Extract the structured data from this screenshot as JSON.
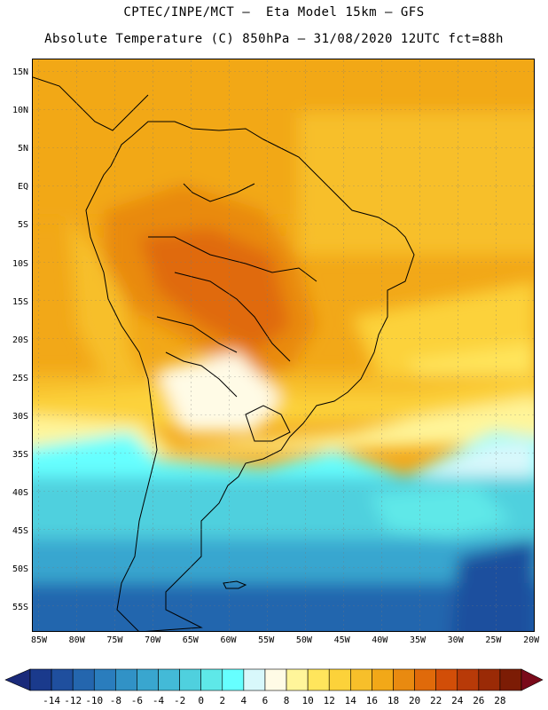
{
  "header": {
    "line1": "CPTEC/INPE/MCT –  Eta Model 15km – GFS",
    "line2": "Absolute Temperature (C) 850hPa – 31/08/2020 12UTC fct=88h"
  },
  "map": {
    "region": "South America",
    "variable": "Absolute Temperature (C) 850hPa",
    "lat_ticks": [
      "15N",
      "10N",
      "5N",
      "EQ",
      "5S",
      "10S",
      "15S",
      "20S",
      "25S",
      "30S",
      "35S",
      "40S",
      "45S",
      "50S",
      "55S"
    ],
    "lon_ticks": [
      "85W",
      "80W",
      "75W",
      "70W",
      "65W",
      "60W",
      "55W",
      "50W",
      "45W",
      "40W",
      "35W",
      "30W",
      "25W",
      "20W"
    ],
    "lat_range": [
      -58,
      16.5
    ],
    "lon_range": [
      -86,
      -20
    ]
  },
  "colorbar": {
    "labels": [
      "-14",
      "-12",
      "-10",
      "-8",
      "-6",
      "-4",
      "-2",
      "0",
      "2",
      "4",
      "6",
      "8",
      "10",
      "12",
      "14",
      "16",
      "18",
      "20",
      "22",
      "24",
      "26",
      "28"
    ],
    "colors": [
      "#1a3a8c",
      "#1f4f9e",
      "#2466ae",
      "#2a7dbd",
      "#3192c6",
      "#39a6cf",
      "#43bad7",
      "#4fd0de",
      "#5ee8e8",
      "#66ffff",
      "#d8f8fb",
      "#fffbe6",
      "#fff59a",
      "#ffe55c",
      "#fcd23a",
      "#f7bf2a",
      "#f2a818",
      "#e98a10",
      "#e06a0a",
      "#d24e08",
      "#b83a08",
      "#9a2a06",
      "#7c1c05"
    ],
    "under_color": "#1a2a7a",
    "over_color": "#7a0a1a"
  }
}
